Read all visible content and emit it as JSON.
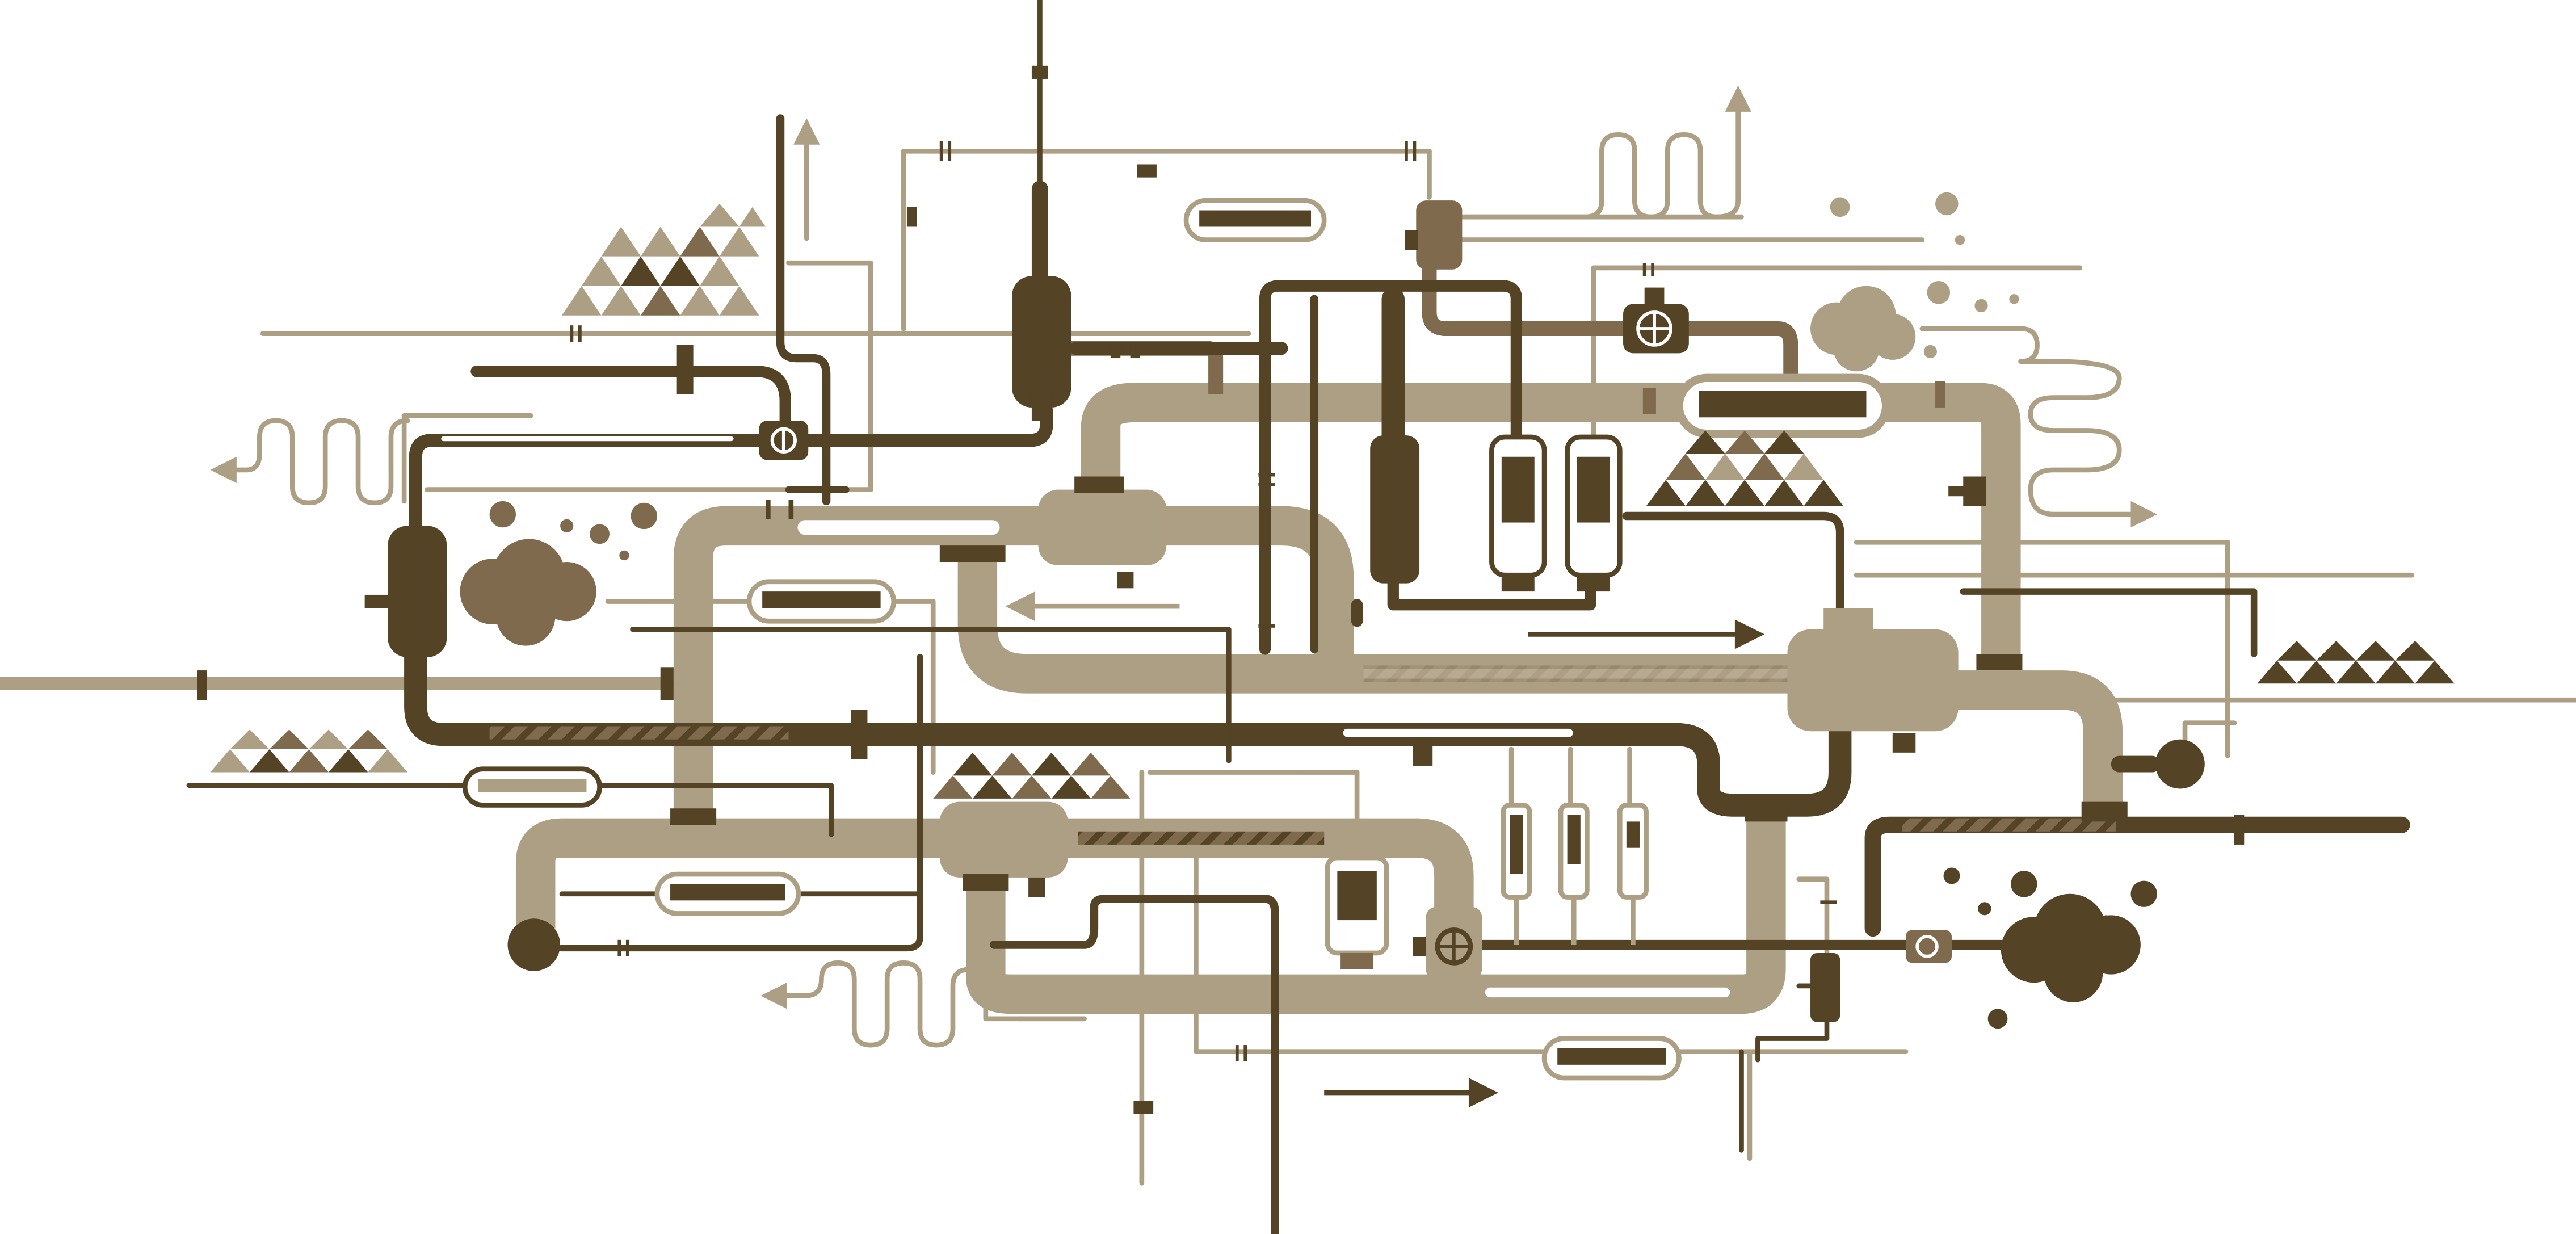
{
  "colors": {
    "background": "#ffffff",
    "dark": "#544325",
    "medium": "#7f6a4d",
    "light": "#ad9f84",
    "pale": "#c9bea9",
    "highlight": "#ffffff"
  },
  "icons": [
    "valve-wheel-icon",
    "flow-arrow-icon",
    "cloud-icon",
    "gauge-tank-icon",
    "triangle-pattern-icon"
  ]
}
